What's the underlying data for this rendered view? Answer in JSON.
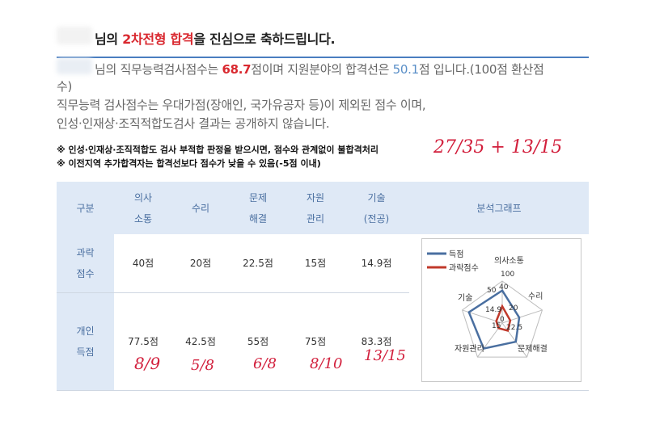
{
  "header": {
    "prefix": "님의 ",
    "highlight": "2차전형 합격",
    "suffix": "을 진심으로 축하드립니다."
  },
  "summary": {
    "line1_pre": "님의 직무능력검사점수는 ",
    "score": "68.7",
    "line1_mid": "점이며 지원분야의 합격선은 ",
    "cutoff": "50.1",
    "line1_post": "점 입니다.(100점 환산점",
    "line2": "수)",
    "line3": "직무능력 검사점수는 우대가점(장애인, 국가유공자 등)이 제외된 점수 이며,",
    "line4": "인성·인재상·조직적합도검사 결과는 공개하지 않습니다."
  },
  "notes": [
    "※ 인성·인재상·조직적합도 검사 부적합 판정을 받으시면, 점수와 관계없이 불합격처리",
    "※ 이전지역 추가합격자는 합격선보다 점수가 낮을 수 있음(-5점 이내)"
  ],
  "handwriting": {
    "top": "27/35  + 13/15",
    "under_scores": [
      "8/9",
      "5/8",
      "6/8",
      "8/10",
      "13/15"
    ]
  },
  "table": {
    "headers": [
      {
        "l1": "구분",
        "l2": ""
      },
      {
        "l1": "의사",
        "l2": "소통"
      },
      {
        "l1": "수리",
        "l2": ""
      },
      {
        "l1": "문제",
        "l2": "해결"
      },
      {
        "l1": "자원",
        "l2": "관리"
      },
      {
        "l1": "기술",
        "l2": "(전공)"
      },
      {
        "l1": "분석그래프",
        "l2": ""
      }
    ],
    "rows": [
      {
        "label1": "과락",
        "label2": "점수",
        "values": [
          "40점",
          "20점",
          "22.5점",
          "15점",
          "14.9점"
        ]
      },
      {
        "label1": "개인",
        "label2": "득점",
        "values": [
          "77.5점",
          "42.5점",
          "55점",
          "75점",
          "83.3점"
        ]
      }
    ]
  },
  "chart_data": {
    "type": "radar",
    "axes": [
      "의사소통",
      "수리",
      "문제해결",
      "자원관리",
      "기술"
    ],
    "range": [
      0,
      100
    ],
    "series": [
      {
        "name": "득점",
        "color": "#4a6fa0",
        "values": [
          77.5,
          42.5,
          55,
          75,
          83.3
        ]
      },
      {
        "name": "과락점수",
        "color": "#c0392b",
        "values": [
          40,
          20,
          22.5,
          15,
          14.9
        ]
      }
    ],
    "visible_labels": [
      "100",
      "50",
      "40",
      "20",
      "14.9",
      "15",
      "22.5",
      "0"
    ],
    "legend_position": "top-left"
  }
}
